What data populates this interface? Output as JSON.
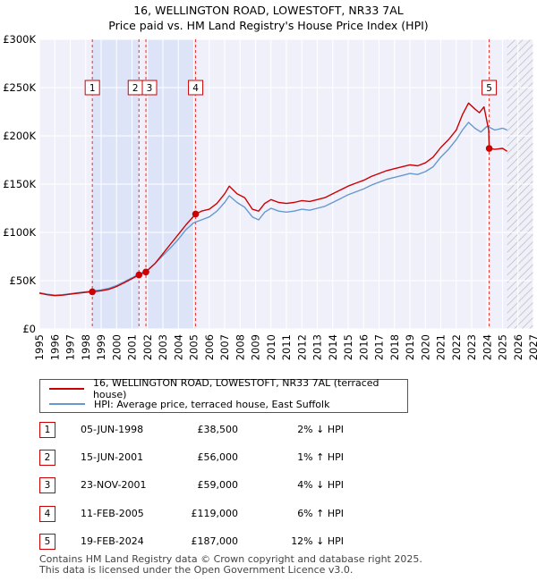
{
  "chart_data": {
    "type": "line",
    "title": "16, WELLINGTON ROAD, LOWESTOFT, NR33 7AL",
    "subtitle": "Price paid vs. HM Land Registry's House Price Index (HPI)",
    "xlim": [
      1995,
      2027
    ],
    "ylim": [
      0,
      300000
    ],
    "x_ticks": [
      1995,
      1996,
      1997,
      1998,
      1999,
      2000,
      2001,
      2002,
      2003,
      2004,
      2005,
      2006,
      2007,
      2008,
      2009,
      2010,
      2011,
      2012,
      2013,
      2014,
      2015,
      2016,
      2017,
      2018,
      2019,
      2020,
      2021,
      2022,
      2023,
      2024,
      2025,
      2026,
      2027
    ],
    "y_ticks": [
      {
        "value": 0,
        "label": "£0"
      },
      {
        "value": 50000,
        "label": "£50K"
      },
      {
        "value": 100000,
        "label": "£100K"
      },
      {
        "value": 150000,
        "label": "£150K"
      },
      {
        "value": 200000,
        "label": "£200K"
      },
      {
        "value": 250000,
        "label": "£250K"
      },
      {
        "value": 300000,
        "label": "£300K"
      }
    ],
    "grid": true,
    "forecast_from": 2025.3,
    "series": [
      {
        "name": "16, WELLINGTON ROAD, LOWESTOFT, NR33 7AL (terraced house)",
        "color": "#cc0000",
        "x": [
          1995,
          1995.5,
          1996,
          1996.5,
          1997,
          1997.5,
          1998,
          1998.43,
          1999,
          1999.5,
          2000,
          2000.5,
          2001,
          2001.45,
          2001.9,
          2002.5,
          2003,
          2003.5,
          2004,
          2004.5,
          2005.12,
          2005.5,
          2006,
          2006.5,
          2007,
          2007.3,
          2007.8,
          2008.3,
          2008.8,
          2009.2,
          2009.6,
          2010,
          2010.5,
          2011,
          2011.5,
          2012,
          2012.5,
          2013,
          2013.5,
          2014,
          2014.5,
          2015,
          2015.5,
          2016,
          2016.5,
          2017,
          2017.5,
          2018,
          2018.5,
          2019,
          2019.5,
          2020,
          2020.5,
          2021,
          2021.5,
          2022,
          2022.4,
          2022.8,
          2023.2,
          2023.5,
          2023.8,
          2024.1,
          2024.135,
          2024.5,
          2025,
          2025.3
        ],
        "values": [
          37000,
          35500,
          34500,
          35000,
          36000,
          37000,
          38000,
          38500,
          39500,
          41000,
          44000,
          48000,
          52000,
          56000,
          59000,
          68000,
          78000,
          88000,
          98000,
          108000,
          119000,
          122000,
          124000,
          130000,
          140000,
          148000,
          140000,
          136000,
          124000,
          122000,
          130000,
          134000,
          131000,
          130000,
          131000,
          133000,
          132000,
          134000,
          136000,
          140000,
          144000,
          148000,
          151000,
          154000,
          158000,
          161000,
          164000,
          166000,
          168000,
          170000,
          169000,
          172000,
          178000,
          188000,
          196000,
          206000,
          222000,
          234000,
          228000,
          224000,
          230000,
          206000,
          187000,
          186000,
          187000,
          184000
        ]
      },
      {
        "name": "HPI: Average price, terraced house, East Suffolk",
        "color": "#6699cc",
        "x": [
          1995,
          1995.5,
          1996,
          1996.5,
          1997,
          1997.5,
          1998,
          1998.5,
          1999,
          1999.5,
          2000,
          2000.5,
          2001,
          2001.5,
          2002,
          2002.5,
          2003,
          2003.5,
          2004,
          2004.5,
          2005,
          2005.5,
          2006,
          2006.5,
          2007,
          2007.3,
          2007.8,
          2008.3,
          2008.8,
          2009.2,
          2009.6,
          2010,
          2010.5,
          2011,
          2011.5,
          2012,
          2012.5,
          2013,
          2013.5,
          2014,
          2014.5,
          2015,
          2015.5,
          2016,
          2016.5,
          2017,
          2017.5,
          2018,
          2018.5,
          2019,
          2019.5,
          2020,
          2020.5,
          2021,
          2021.5,
          2022,
          2022.4,
          2022.8,
          2023.2,
          2023.6,
          2024,
          2024.5,
          2025,
          2025.3
        ],
        "values": [
          37500,
          36000,
          35000,
          35500,
          36500,
          37500,
          38500,
          39500,
          40500,
          42000,
          45000,
          49000,
          53000,
          57000,
          61000,
          68000,
          76000,
          84000,
          93000,
          103000,
          110000,
          113000,
          116000,
          122000,
          131000,
          138000,
          131000,
          126000,
          116000,
          113000,
          121000,
          125000,
          122000,
          121000,
          122000,
          124000,
          123000,
          125000,
          127000,
          131000,
          135000,
          139000,
          142000,
          145000,
          149000,
          152000,
          155000,
          157000,
          159000,
          161000,
          160000,
          163000,
          168000,
          178000,
          186000,
          196000,
          206000,
          214000,
          208000,
          204000,
          210000,
          206000,
          208000,
          206000
        ]
      }
    ],
    "sale_points": [
      {
        "id": "1",
        "x": 1998.43,
        "value": 38500
      },
      {
        "id": "2",
        "x": 2001.45,
        "value": 56000
      },
      {
        "id": "3",
        "x": 2001.9,
        "value": 59000
      },
      {
        "id": "4",
        "x": 2005.12,
        "value": 119000
      },
      {
        "id": "5",
        "x": 2024.135,
        "value": 187000
      }
    ],
    "shaded_periods": [
      [
        1998.43,
        2001.45
      ],
      [
        2001.9,
        2005.12
      ]
    ],
    "label_value": 250000
  },
  "legend": {
    "property_label": "16, WELLINGTON ROAD, LOWESTOFT, NR33 7AL (terraced house)",
    "hpi_label": "HPI: Average price, terraced house, East Suffolk",
    "property_color": "#cc0000",
    "hpi_color": "#6699cc"
  },
  "transactions": [
    {
      "num": "1",
      "date": "05-JUN-1998",
      "price": "£38,500",
      "hpi": "2% ↓ HPI"
    },
    {
      "num": "2",
      "date": "15-JUN-2001",
      "price": "£56,000",
      "hpi": "1% ↑ HPI"
    },
    {
      "num": "3",
      "date": "23-NOV-2001",
      "price": "£59,000",
      "hpi": "4% ↓ HPI"
    },
    {
      "num": "4",
      "date": "11-FEB-2005",
      "price": "£119,000",
      "hpi": "6% ↑ HPI"
    },
    {
      "num": "5",
      "date": "19-FEB-2024",
      "price": "£187,000",
      "hpi": "12% ↓ HPI"
    }
  ],
  "footer": {
    "line1": "Contains HM Land Registry data © Crown copyright and database right 2025.",
    "line2": "This data is licensed under the Open Government Licence v3.0."
  }
}
